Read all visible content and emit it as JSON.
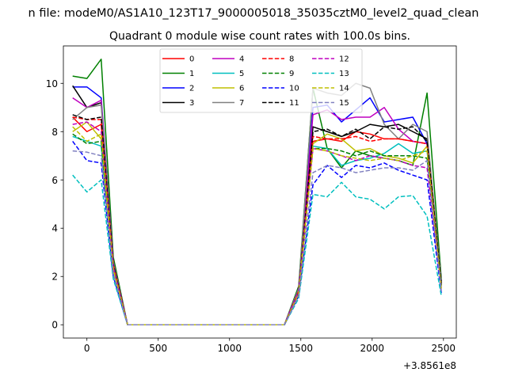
{
  "chart_data": {
    "type": "line",
    "suptitle": "n file: modeM0/AS1A10_123T17_9000005018_35035cztM0_level2_quad_clean",
    "title": "Quadrant 0 module wise count rates with 100.0s bins.",
    "xlabel": "",
    "ylabel": "",
    "x_offset_label": "+3.8561e8",
    "xlim": [
      -165,
      2590
    ],
    "ylim": [
      -0.55,
      11.55
    ],
    "x_ticks": [
      0,
      500,
      1000,
      1500,
      2000,
      2500
    ],
    "y_ticks": [
      0,
      2,
      4,
      6,
      8,
      10
    ],
    "grid": false,
    "legend_location": "upper center",
    "legend_columns": 4,
    "x": [
      -100,
      0,
      100,
      185,
      285,
      1385,
      1485,
      1585,
      1685,
      1785,
      1885,
      1985,
      2085,
      2185,
      2285,
      2385,
      2485
    ],
    "series": [
      {
        "name": "0",
        "color": "#ff0000",
        "dash": "solid",
        "values": [
          8.6,
          8.0,
          8.3,
          2.5,
          0,
          0,
          1.4,
          7.6,
          7.7,
          7.6,
          8.0,
          7.9,
          7.7,
          7.7,
          7.6,
          7.5,
          1.6
        ]
      },
      {
        "name": "1",
        "color": "#008000",
        "dash": "solid",
        "values": [
          10.3,
          10.2,
          11.0,
          2.8,
          0,
          0,
          1.6,
          9.8,
          7.3,
          6.5,
          7.2,
          7.0,
          6.9,
          6.8,
          6.6,
          9.6,
          1.9
        ]
      },
      {
        "name": "2",
        "color": "#0000ff",
        "dash": "solid",
        "values": [
          9.85,
          9.85,
          9.4,
          2.6,
          0,
          0,
          1.5,
          9.0,
          9.1,
          8.4,
          8.9,
          9.4,
          8.4,
          8.5,
          8.6,
          7.5,
          1.8
        ]
      },
      {
        "name": "3",
        "color": "#000000",
        "dash": "solid",
        "values": [
          9.9,
          9.0,
          9.2,
          2.6,
          0,
          0,
          1.5,
          8.2,
          8.0,
          7.8,
          8.0,
          8.3,
          8.2,
          8.3,
          8.0,
          7.7,
          1.8
        ]
      },
      {
        "name": "4",
        "color": "#bf00bf",
        "dash": "solid",
        "values": [
          9.4,
          9.0,
          9.3,
          2.6,
          0,
          0,
          1.5,
          8.7,
          8.9,
          8.5,
          8.6,
          8.6,
          9.0,
          8.1,
          7.6,
          7.5,
          1.7
        ]
      },
      {
        "name": "5",
        "color": "#00bfbf",
        "dash": "solid",
        "values": [
          7.8,
          7.6,
          7.4,
          2.3,
          0,
          0,
          1.3,
          7.4,
          7.3,
          6.6,
          6.8,
          6.9,
          7.1,
          7.5,
          7.1,
          7.2,
          1.6
        ]
      },
      {
        "name": "6",
        "color": "#bfbf00",
        "dash": "solid",
        "values": [
          8.0,
          8.4,
          7.7,
          2.3,
          0,
          0,
          1.3,
          7.5,
          7.9,
          7.7,
          7.2,
          7.3,
          7.0,
          6.9,
          6.7,
          7.4,
          1.6
        ]
      },
      {
        "name": "7",
        "color": "#808080",
        "dash": "solid",
        "values": [
          8.5,
          9.0,
          9.1,
          2.6,
          0,
          0,
          1.5,
          9.8,
          9.6,
          9.5,
          10.0,
          9.8,
          8.3,
          7.7,
          8.3,
          8.0,
          1.8
        ]
      },
      {
        "name": "8",
        "color": "#ff0000",
        "dash": "dashed",
        "values": [
          8.6,
          8.5,
          8.5,
          2.5,
          0,
          0,
          1.4,
          7.8,
          7.7,
          7.7,
          7.8,
          7.6,
          7.7,
          7.7,
          7.6,
          7.5,
          1.6
        ]
      },
      {
        "name": "9",
        "color": "#008000",
        "dash": "dashed",
        "values": [
          7.9,
          7.5,
          7.6,
          2.3,
          0,
          0,
          1.3,
          7.3,
          7.3,
          7.2,
          7.0,
          7.2,
          7.0,
          7.0,
          7.0,
          6.9,
          1.6
        ]
      },
      {
        "name": "10",
        "color": "#0000ff",
        "dash": "dashed",
        "values": [
          7.6,
          6.8,
          6.7,
          2.0,
          0,
          0,
          1.2,
          5.8,
          6.6,
          6.1,
          6.6,
          6.5,
          6.7,
          6.4,
          6.2,
          6.0,
          1.3
        ]
      },
      {
        "name": "11",
        "color": "#000000",
        "dash": "dashed",
        "values": [
          8.7,
          8.5,
          8.6,
          2.5,
          0,
          0,
          1.4,
          8.0,
          8.1,
          7.8,
          8.1,
          7.7,
          8.2,
          8.1,
          8.2,
          7.6,
          1.7
        ]
      },
      {
        "name": "12",
        "color": "#bf00bf",
        "dash": "dashed",
        "values": [
          8.3,
          8.4,
          8.0,
          2.4,
          0,
          0,
          1.4,
          7.3,
          7.2,
          7.0,
          6.8,
          7.0,
          6.9,
          6.8,
          6.6,
          6.5,
          1.5
        ]
      },
      {
        "name": "13",
        "color": "#00bfbf",
        "dash": "dashed",
        "values": [
          6.2,
          5.5,
          6.0,
          1.9,
          0,
          0,
          1.1,
          5.4,
          5.3,
          5.9,
          5.3,
          5.2,
          4.8,
          5.3,
          5.35,
          4.5,
          1.2
        ]
      },
      {
        "name": "14",
        "color": "#bfbf00",
        "dash": "dashed",
        "values": [
          8.2,
          7.6,
          7.9,
          2.3,
          0,
          0,
          1.3,
          7.3,
          7.2,
          7.0,
          6.9,
          6.8,
          6.9,
          6.8,
          7.0,
          7.2,
          1.5
        ]
      },
      {
        "name": "15",
        "color": "#8080c0",
        "dash": "dashed",
        "values": [
          7.2,
          7.15,
          7.0,
          2.1,
          0,
          0,
          1.2,
          6.3,
          6.6,
          6.5,
          6.3,
          6.4,
          6.5,
          6.5,
          6.4,
          6.8,
          1.4
        ]
      }
    ]
  }
}
